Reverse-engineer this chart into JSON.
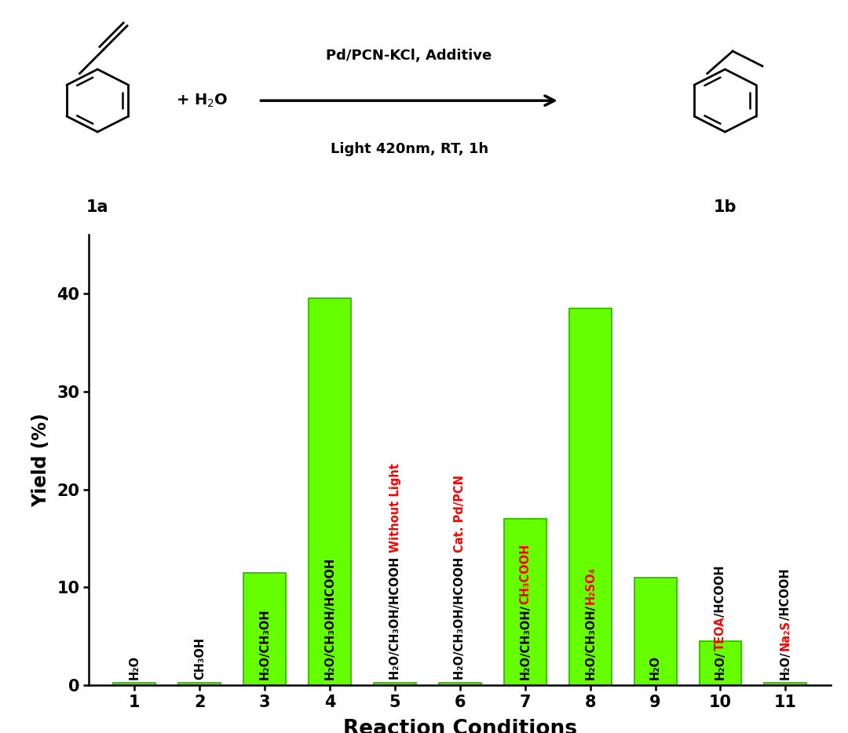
{
  "bar_values": [
    0.3,
    0.3,
    11.5,
    39.5,
    0.3,
    0.3,
    17.0,
    38.5,
    11.0,
    4.5,
    0.3
  ],
  "bar_color": "#66FF00",
  "bar_edge_color": "#33BB00",
  "x_labels": [
    "1",
    "2",
    "3",
    "4",
    "5",
    "6",
    "7",
    "8",
    "9",
    "10",
    "11"
  ],
  "ylabel": "Yield (%)",
  "xlabel": "Reaction Conditions",
  "ylim": [
    0,
    46
  ],
  "yticks": [
    0,
    10,
    20,
    30,
    40
  ],
  "background_color": "white",
  "fig_width": 10.8,
  "fig_height": 9.34,
  "label_fontsize": 10.5,
  "bar_labels": [
    [
      [
        "H₂O",
        "black"
      ]
    ],
    [
      [
        "CH₃OH",
        "black"
      ]
    ],
    [
      [
        "H₂O/CH₃OH",
        "black"
      ]
    ],
    [
      [
        "H₂O/CH₃OH/HCOOH",
        "black"
      ]
    ],
    [
      [
        "H₂O/CH₃OH/HCOOH ",
        "black"
      ],
      [
        "Without Light",
        "red"
      ]
    ],
    [
      [
        "H₂O/CH₃OH/HCOOH ",
        "black"
      ],
      [
        "Cat. Pd/PCN",
        "red"
      ]
    ],
    [
      [
        "H₂O/CH₃OH/",
        "black"
      ],
      [
        "CH₃COOH",
        "red"
      ]
    ],
    [
      [
        "H₂O/CH₃OH/",
        "black"
      ],
      [
        "H₂SO₄",
        "red"
      ]
    ],
    [
      [
        "H₂O",
        "black"
      ]
    ],
    [
      [
        "H₂O/",
        "black"
      ],
      [
        "TEOA",
        "red"
      ],
      [
        "/HCOOH",
        "black"
      ]
    ],
    [
      [
        "H₂O/",
        "black"
      ],
      [
        "Na₂S",
        "red"
      ],
      [
        "/HCOOH",
        "black"
      ]
    ]
  ]
}
